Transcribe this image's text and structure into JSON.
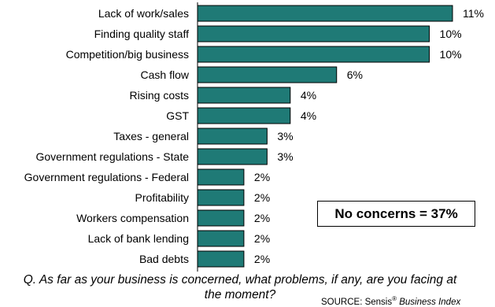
{
  "chart_data": {
    "type": "bar",
    "orientation": "horizontal",
    "categories": [
      "Lack of work/sales",
      "Finding quality staff",
      "Competition/big business",
      "Cash flow",
      "Rising costs",
      "GST",
      "Taxes - general",
      "Government regulations - State",
      "Government regulations - Federal",
      "Profitability",
      "Workers compensation",
      "Lack of bank lending",
      "Bad debts"
    ],
    "values": [
      11,
      10,
      10,
      6,
      4,
      4,
      3,
      3,
      2,
      2,
      2,
      2,
      2
    ],
    "value_labels": [
      "11%",
      "10%",
      "10%",
      "6%",
      "4%",
      "4%",
      "3%",
      "3%",
      "2%",
      "2%",
      "2%",
      "2%",
      "2%"
    ],
    "xlim": [
      0,
      11
    ],
    "bar_color": "#1f7a76",
    "grid": false
  },
  "callout": "No concerns = 37%",
  "question": "Q. As far as your business is concerned, what problems, if any, are you facing at the moment?",
  "source": {
    "prefix": "SOURCE: Sensis",
    "mark": "®",
    "title": "Business Index"
  }
}
